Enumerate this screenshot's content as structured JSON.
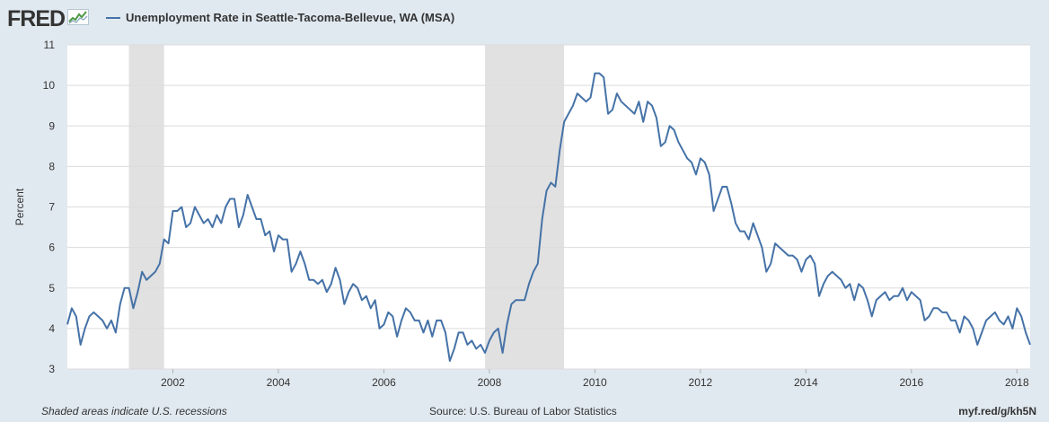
{
  "header": {
    "logo_text": "FRED",
    "logo_icon": "line-chart-icon",
    "series_title": "Unemployment Rate in Seattle-Tacoma-Bellevue, WA (MSA)"
  },
  "footer": {
    "recession_note": "Shaded areas indicate U.S. recessions",
    "source": "Source: U.S. Bureau of Labor Statistics",
    "short_url": "myf.red/g/kh5N"
  },
  "colors": {
    "page_background": "#e1e9f0",
    "plot_background": "#ffffff",
    "series_line": "#4572a7",
    "recession_shade": "#e1e1e1",
    "grid_line": "#dcdcdc",
    "text": "#333333"
  },
  "chart_data": {
    "type": "line",
    "title": "",
    "xlabel": "",
    "ylabel": "Percent",
    "xlim": [
      "2000-01",
      "2018-04"
    ],
    "ylim": [
      3,
      11
    ],
    "yticks": [
      3,
      4,
      5,
      6,
      7,
      8,
      9,
      10,
      11
    ],
    "xticks": [
      "2002",
      "2004",
      "2006",
      "2008",
      "2010",
      "2012",
      "2014",
      "2016",
      "2018"
    ],
    "grid": "horizontal",
    "legend_position": "top-left",
    "recessions": [
      {
        "start": "2001-03",
        "end": "2001-11"
      },
      {
        "start": "2007-12",
        "end": "2009-06"
      }
    ],
    "series": [
      {
        "name": "Unemployment Rate in Seattle-Tacoma-Bellevue, WA (MSA)",
        "start": "2000-01",
        "frequency": "monthly",
        "values": [
          4.1,
          4.5,
          4.3,
          3.6,
          4.0,
          4.3,
          4.4,
          4.3,
          4.2,
          4.0,
          4.2,
          3.9,
          4.6,
          5.0,
          5.0,
          4.5,
          4.9,
          5.4,
          5.2,
          5.3,
          5.4,
          5.6,
          6.2,
          6.1,
          6.9,
          6.9,
          7.0,
          6.5,
          6.6,
          7.0,
          6.8,
          6.6,
          6.7,
          6.5,
          6.8,
          6.6,
          7.0,
          7.2,
          7.2,
          6.5,
          6.8,
          7.3,
          7.0,
          6.7,
          6.7,
          6.3,
          6.4,
          5.9,
          6.3,
          6.2,
          6.2,
          5.4,
          5.6,
          5.9,
          5.6,
          5.2,
          5.2,
          5.1,
          5.2,
          4.9,
          5.1,
          5.5,
          5.2,
          4.6,
          4.9,
          5.1,
          5.0,
          4.7,
          4.8,
          4.5,
          4.7,
          4.0,
          4.1,
          4.4,
          4.3,
          3.8,
          4.2,
          4.5,
          4.4,
          4.2,
          4.2,
          3.9,
          4.2,
          3.8,
          4.2,
          4.2,
          3.9,
          3.2,
          3.5,
          3.9,
          3.9,
          3.6,
          3.7,
          3.5,
          3.6,
          3.4,
          3.7,
          3.9,
          4.0,
          3.4,
          4.1,
          4.6,
          4.7,
          4.7,
          4.7,
          5.1,
          5.4,
          5.6,
          6.7,
          7.4,
          7.6,
          7.5,
          8.4,
          9.1,
          9.3,
          9.5,
          9.8,
          9.7,
          9.6,
          9.7,
          10.3,
          10.3,
          10.2,
          9.3,
          9.4,
          9.8,
          9.6,
          9.5,
          9.4,
          9.3,
          9.6,
          9.1,
          9.6,
          9.5,
          9.2,
          8.5,
          8.6,
          9.0,
          8.9,
          8.6,
          8.4,
          8.2,
          8.1,
          7.8,
          8.2,
          8.1,
          7.8,
          6.9,
          7.2,
          7.5,
          7.5,
          7.1,
          6.6,
          6.4,
          6.4,
          6.2,
          6.6,
          6.3,
          6.0,
          5.4,
          5.6,
          6.1,
          6.0,
          5.9,
          5.8,
          5.8,
          5.7,
          5.4,
          5.7,
          5.8,
          5.6,
          4.8,
          5.1,
          5.3,
          5.4,
          5.3,
          5.2,
          5.0,
          5.1,
          4.7,
          5.1,
          5.0,
          4.7,
          4.3,
          4.7,
          4.8,
          4.9,
          4.7,
          4.8,
          4.8,
          5.0,
          4.7,
          4.9,
          4.8,
          4.7,
          4.2,
          4.3,
          4.5,
          4.5,
          4.4,
          4.4,
          4.2,
          4.2,
          3.9,
          4.3,
          4.2,
          4.0,
          3.6,
          3.9,
          4.2,
          4.3,
          4.4,
          4.2,
          4.1,
          4.3,
          4.0,
          4.5,
          4.3,
          3.9,
          3.6
        ]
      }
    ]
  }
}
